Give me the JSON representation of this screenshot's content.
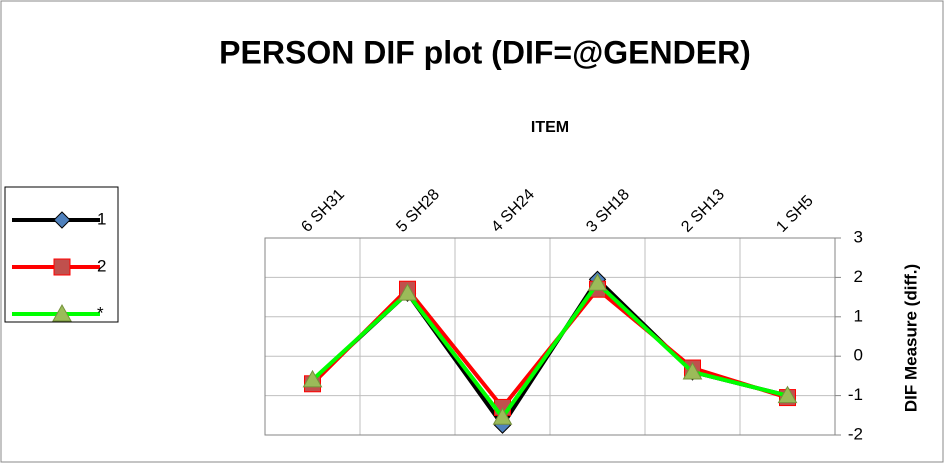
{
  "chart_data": {
    "type": "line",
    "title": "PERSON DIF plot (DIF=@GENDER)",
    "x_label": "ITEM",
    "y_label": "DIF Measure (diff.)",
    "categories": [
      "6 SH31",
      "5 SH28",
      "4 SH24",
      "3 SH18",
      "2 SH13",
      "1 SH5"
    ],
    "series": [
      {
        "name": "1",
        "color": "#000000",
        "marker": "diamond",
        "marker_color": "#4f81bd",
        "values": [
          -0.63,
          1.6,
          -1.75,
          1.95,
          -0.4,
          -1.0
        ]
      },
      {
        "name": "2",
        "color": "#ff0000",
        "marker": "square",
        "marker_color": "#c0504d",
        "values": [
          -0.7,
          1.7,
          -1.3,
          1.7,
          -0.3,
          -1.05
        ]
      },
      {
        "name": "*",
        "color": "#00ff00",
        "marker": "triangle",
        "marker_color": "#9bbb59",
        "values": [
          -0.6,
          1.6,
          -1.55,
          1.85,
          -0.4,
          -1.0
        ]
      }
    ],
    "ylim": [
      -2,
      3
    ],
    "yticks": [
      -2,
      -1,
      0,
      1,
      2,
      3
    ],
    "grid": true,
    "legend": "left"
  }
}
